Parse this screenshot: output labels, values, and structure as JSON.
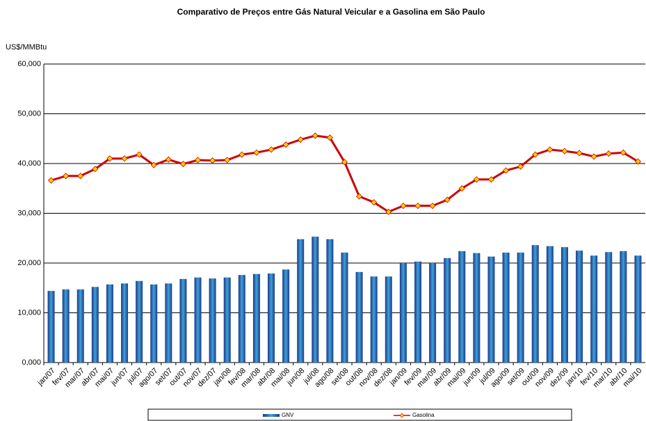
{
  "chart_data": {
    "type": "bar-line",
    "title": "Comparativo de Preços entre Gás Natural Veicular e a Gasolina em São Paulo",
    "y_label": "US$/MMBtu",
    "categories": [
      "jan/07",
      "fev/07",
      "mar/07",
      "abr/07",
      "mai/07",
      "jun/07",
      "jul/07",
      "ago/07",
      "set/07",
      "out/07",
      "nov/07",
      "dez/07",
      "jan/08",
      "fev/08",
      "mar/08",
      "abr/08",
      "mai/08",
      "jun/08",
      "jul/08",
      "ago/08",
      "set/08",
      "out/08",
      "nov/08",
      "dez/08",
      "jan/09",
      "fev/09",
      "mar/09",
      "abr/09",
      "mai/09",
      "jun/09",
      "jul/09",
      "ago/09",
      "set/09",
      "out/09",
      "nov/09",
      "dez/09",
      "jan/10",
      "fev/10",
      "mar/10",
      "abr/10",
      "mai/10"
    ],
    "series": [
      {
        "name": "GNV",
        "type": "bar",
        "color": "#3fa0d8",
        "values": [
          14.4,
          14.7,
          14.7,
          15.2,
          15.7,
          15.9,
          16.4,
          15.7,
          15.9,
          16.8,
          17.1,
          16.9,
          17.1,
          17.6,
          17.8,
          17.9,
          18.7,
          24.8,
          25.3,
          24.8,
          22.1,
          18.2,
          17.3,
          17.3,
          20.0,
          20.3,
          20.0,
          21.0,
          22.4,
          22.0,
          21.3,
          22.1,
          22.1,
          23.6,
          23.4,
          23.2,
          22.5,
          21.5,
          22.2,
          22.4,
          21.5
        ]
      },
      {
        "name": "Gasolina",
        "type": "line",
        "color": "#cc0000",
        "marker_color": "#ffcc00",
        "values": [
          36.6,
          37.5,
          37.5,
          38.9,
          41.0,
          41.0,
          41.8,
          39.7,
          40.8,
          39.9,
          40.7,
          40.6,
          40.7,
          41.8,
          42.2,
          42.8,
          43.8,
          44.8,
          45.6,
          45.2,
          40.3,
          33.4,
          32.2,
          30.3,
          31.5,
          31.5,
          31.5,
          32.7,
          35.0,
          36.8,
          36.8,
          38.6,
          39.4,
          41.8,
          42.8,
          42.5,
          42.1,
          41.4,
          42.0,
          42.2,
          40.4
        ]
      }
    ],
    "ylim": [
      0,
      60
    ],
    "yticks": [
      {
        "value": 0,
        "label": "0,000"
      },
      {
        "value": 10,
        "label": "10,000"
      },
      {
        "value": 20,
        "label": "20,000"
      },
      {
        "value": 30,
        "label": "30,000"
      },
      {
        "value": 40,
        "label": "40,000"
      },
      {
        "value": 50,
        "label": "50,000"
      },
      {
        "value": 60,
        "label": "60,000"
      }
    ],
    "grid": true,
    "legend": "bottom"
  }
}
